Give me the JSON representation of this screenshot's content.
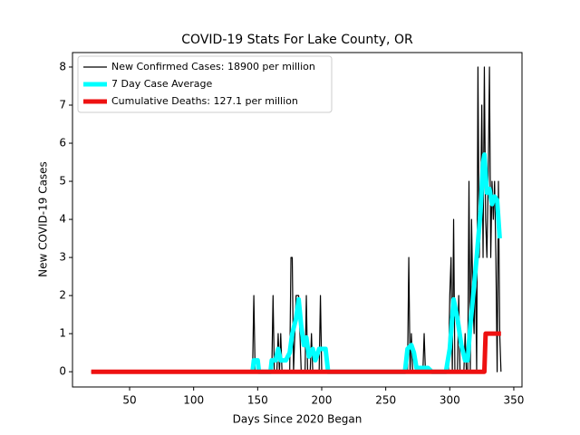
{
  "chart_data": {
    "type": "line",
    "title": "COVID-19 Stats For Lake County, OR",
    "xlabel": "Days Since 2020 Began",
    "ylabel": "New COVID-19 Cases",
    "xlim": [
      5.4,
      356.4
    ],
    "ylim": [
      -0.4,
      8.38
    ],
    "xticks": [
      50,
      100,
      150,
      200,
      250,
      300,
      350
    ],
    "yticks": [
      0,
      1,
      2,
      3,
      4,
      5,
      6,
      7,
      8
    ],
    "legend": "upper left",
    "series": [
      {
        "name": "New Confirmed Cases: 18900 per million",
        "color": "#000000",
        "x": [
          20,
          146,
          147,
          148,
          161,
          162,
          163,
          165,
          166,
          167,
          168,
          169,
          175,
          176,
          177,
          178,
          179,
          180,
          181,
          182,
          183,
          184,
          187,
          188,
          189,
          191,
          192,
          193,
          198,
          199,
          200,
          267,
          268,
          269,
          270,
          271,
          279,
          280,
          281,
          299,
          300,
          301,
          302,
          303,
          304,
          306,
          307,
          308,
          311,
          312,
          313,
          314,
          315,
          316,
          317,
          318,
          319,
          320,
          321,
          322,
          323,
          324,
          325,
          326,
          327,
          328,
          329,
          330,
          331,
          332,
          333,
          334,
          335,
          336,
          337,
          338,
          339,
          340
        ],
        "values": [
          0,
          0,
          2,
          0,
          0,
          2,
          0,
          0,
          1,
          0,
          1,
          0,
          0,
          3,
          3,
          0,
          1,
          2,
          2,
          2,
          1,
          0,
          0,
          2,
          0,
          0,
          1,
          0,
          0,
          2,
          0,
          0,
          3,
          0,
          1,
          0,
          0,
          1,
          0,
          0,
          2,
          3,
          0,
          4,
          0,
          0,
          2,
          0,
          0,
          1,
          0,
          0,
          5,
          0,
          4,
          2,
          1,
          3,
          0,
          8,
          3,
          4,
          7,
          3,
          8,
          4,
          3,
          5,
          8,
          3,
          5,
          4,
          5,
          3,
          0,
          5,
          1,
          0
        ]
      },
      {
        "name": "7 Day Case Average",
        "color": "#00ffff",
        "x": [
          146,
          147,
          150,
          151,
          160,
          161,
          164,
          166,
          168,
          172,
          175,
          177,
          180,
          182,
          184,
          186,
          188,
          190,
          193,
          195,
          198,
          203,
          205,
          265,
          267,
          270,
          272,
          274,
          283,
          286,
          297,
          300,
          303,
          306,
          309,
          312,
          314,
          316,
          318,
          321,
          324,
          326,
          327,
          329,
          331,
          333,
          335,
          337,
          339
        ],
        "values": [
          0,
          0.3,
          0.3,
          0,
          0,
          0.3,
          0.3,
          0.6,
          0.3,
          0.3,
          0.5,
          1,
          1.4,
          1.9,
          1.2,
          0.7,
          0.9,
          0.4,
          0.6,
          0.3,
          0.6,
          0.6,
          0,
          0,
          0.6,
          0.7,
          0.5,
          0.1,
          0.1,
          0,
          0,
          0.6,
          1.9,
          1.4,
          0.7,
          0.3,
          0.3,
          1.2,
          1.9,
          3,
          4.2,
          5.5,
          5.7,
          4.7,
          4.8,
          4.4,
          4.6,
          4.5,
          3.5
        ]
      },
      {
        "name": "Cumulative Deaths: 127.1 per million",
        "color": "#ee1111",
        "x": [
          20,
          327,
          328,
          340
        ],
        "values": [
          0,
          0,
          1,
          1
        ]
      }
    ]
  }
}
